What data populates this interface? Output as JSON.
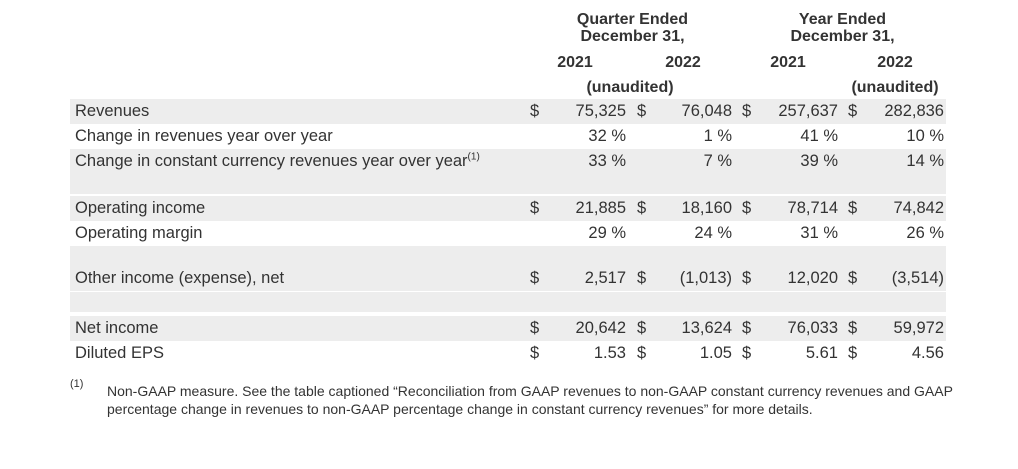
{
  "header": {
    "quarter_title_1": "Quarter Ended",
    "quarter_title_2": "December 31,",
    "year_title_1": "Year Ended",
    "year_title_2": "December 31,",
    "col1_year": "2021",
    "col2_year": "2022",
    "col3_year": "2021",
    "col4_year": "2022",
    "quarter_note": "(unaudited)",
    "year_note": "(unaudited)"
  },
  "rows": [
    {
      "label": "Revenues",
      "sup": "",
      "d1": "$",
      "v1": "75,325",
      "d2": "$",
      "v2": "76,048",
      "d3": "$",
      "v3": "257,637",
      "d4": "$",
      "v4": "282,836"
    },
    {
      "label": "Change in revenues year over year",
      "sup": "",
      "d1": "",
      "v1": "32 %",
      "d2": "",
      "v2": "1 %",
      "d3": "",
      "v3": "41 %",
      "d4": "",
      "v4": "10 %"
    },
    {
      "label": "Change in constant currency revenues year over year",
      "sup": "(1)",
      "d1": "",
      "v1": "33 %",
      "d2": "",
      "v2": "7 %",
      "d3": "",
      "v3": "39 %",
      "d4": "",
      "v4": "14 %"
    },
    {
      "label": "Operating income",
      "sup": "",
      "d1": "$",
      "v1": "21,885",
      "d2": "$",
      "v2": "18,160",
      "d3": "$",
      "v3": "78,714",
      "d4": "$",
      "v4": "74,842"
    },
    {
      "label": "Operating margin",
      "sup": "",
      "d1": "",
      "v1": "29 %",
      "d2": "",
      "v2": "24 %",
      "d3": "",
      "v3": "31 %",
      "d4": "",
      "v4": "26 %"
    },
    {
      "label": "Other income (expense), net",
      "sup": "",
      "d1": "$",
      "v1": "2,517",
      "d2": "$",
      "v2": "(1,013)",
      "d3": "$",
      "v3": "12,020",
      "d4": "$",
      "v4": "(3,514)"
    },
    {
      "label": "Net income",
      "sup": "",
      "d1": "$",
      "v1": "20,642",
      "d2": "$",
      "v2": "13,624",
      "d3": "$",
      "v3": "76,033",
      "d4": "$",
      "v4": "59,972"
    },
    {
      "label": "Diluted EPS",
      "sup": "",
      "d1": "$",
      "v1": "1.53",
      "d2": "$",
      "v2": "1.05",
      "d3": "$",
      "v3": "5.61",
      "d4": "$",
      "v4": "4.56"
    }
  ],
  "footnote": {
    "mark": "(1)",
    "text": "Non-GAAP measure. See the table captioned “Reconciliation from GAAP revenues to non-GAAP constant currency revenues and GAAP percentage change in revenues to non-GAAP percentage change in constant currency revenues” for more details."
  },
  "colors": {
    "row_shade": "#ededed",
    "text": "#333333"
  }
}
